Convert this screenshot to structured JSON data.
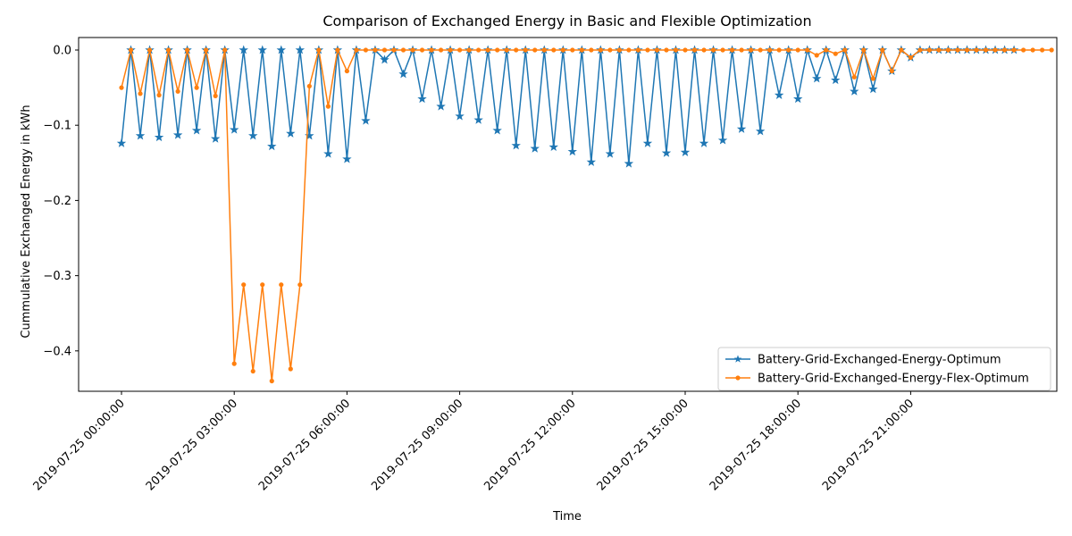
{
  "chart_data": {
    "type": "line",
    "title": "Comparison of Exchanged Energy in Basic and Flexible Optimization",
    "xlabel": "Time",
    "ylabel": "Cummulative Exchanged Energy in kWh",
    "x_start": "2019-07-25 00:00:00",
    "x_step_minutes": 15,
    "x_ticks": [
      "2019-07-25 00:00:00",
      "2019-07-25 03:00:00",
      "2019-07-25 06:00:00",
      "2019-07-25 09:00:00",
      "2019-07-25 12:00:00",
      "2019-07-25 15:00:00",
      "2019-07-25 18:00:00",
      "2019-07-25 21:00:00"
    ],
    "y_ticks": [
      "0.0",
      "−0.1",
      "−0.2",
      "−0.3",
      "−0.4"
    ],
    "ylim": [
      -0.46,
      0.022
    ],
    "grid": false,
    "legend_position": "lower-right",
    "series": [
      {
        "name": "Battery-Grid-Exchanged-Energy-Optimum",
        "color": "#1f77b4",
        "marker": "star",
        "values": [
          -0.124,
          0,
          -0.114,
          0,
          -0.116,
          0,
          -0.113,
          0,
          -0.107,
          0,
          -0.118,
          0,
          -0.106,
          0,
          -0.114,
          0,
          -0.128,
          0,
          -0.111,
          0,
          -0.114,
          0,
          -0.138,
          0,
          -0.145,
          0,
          -0.094,
          0,
          -0.013,
          0,
          -0.032,
          0,
          -0.065,
          0,
          -0.075,
          0,
          -0.088,
          0,
          -0.093,
          0,
          -0.107,
          0,
          -0.127,
          0,
          -0.131,
          0,
          -0.129,
          0,
          -0.135,
          0,
          -0.149,
          0,
          -0.138,
          0,
          -0.151,
          0,
          -0.124,
          0,
          -0.137,
          0,
          -0.136,
          0,
          -0.124,
          0,
          -0.12,
          0,
          -0.105,
          0,
          -0.108,
          0,
          -0.06,
          0,
          -0.065,
          0,
          -0.038,
          0,
          -0.04,
          0,
          -0.055,
          0,
          -0.052,
          0,
          -0.028,
          0,
          -0.01,
          0,
          0,
          0,
          0,
          0,
          0,
          0,
          0,
          0,
          0,
          0
        ]
      },
      {
        "name": "Battery-Grid-Exchanged-Energy-Flex-Optimum",
        "color": "#ff7f0e",
        "marker": "circle",
        "values": [
          -0.05,
          0,
          -0.058,
          0,
          -0.06,
          0,
          -0.055,
          0,
          -0.05,
          0,
          -0.061,
          0,
          -0.417,
          -0.312,
          -0.427,
          -0.312,
          -0.44,
          -0.312,
          -0.424,
          -0.312,
          -0.048,
          0,
          -0.075,
          0,
          -0.028,
          0,
          0,
          0,
          0,
          0,
          0,
          0,
          0,
          0,
          0,
          0,
          0,
          0,
          0,
          0,
          0,
          0,
          0,
          0,
          0,
          0,
          0,
          0,
          0,
          0,
          0,
          0,
          0,
          0,
          0,
          0,
          0,
          0,
          0,
          0,
          0,
          0,
          0,
          0,
          0,
          0,
          0,
          0,
          0,
          0,
          0,
          0,
          0,
          0,
          -0.007,
          0,
          -0.005,
          0,
          -0.036,
          0,
          -0.038,
          0,
          -0.028,
          0,
          -0.01,
          0,
          0,
          0,
          0,
          0,
          0,
          0,
          0,
          0,
          0,
          0,
          0,
          0,
          0,
          0
        ]
      }
    ]
  }
}
